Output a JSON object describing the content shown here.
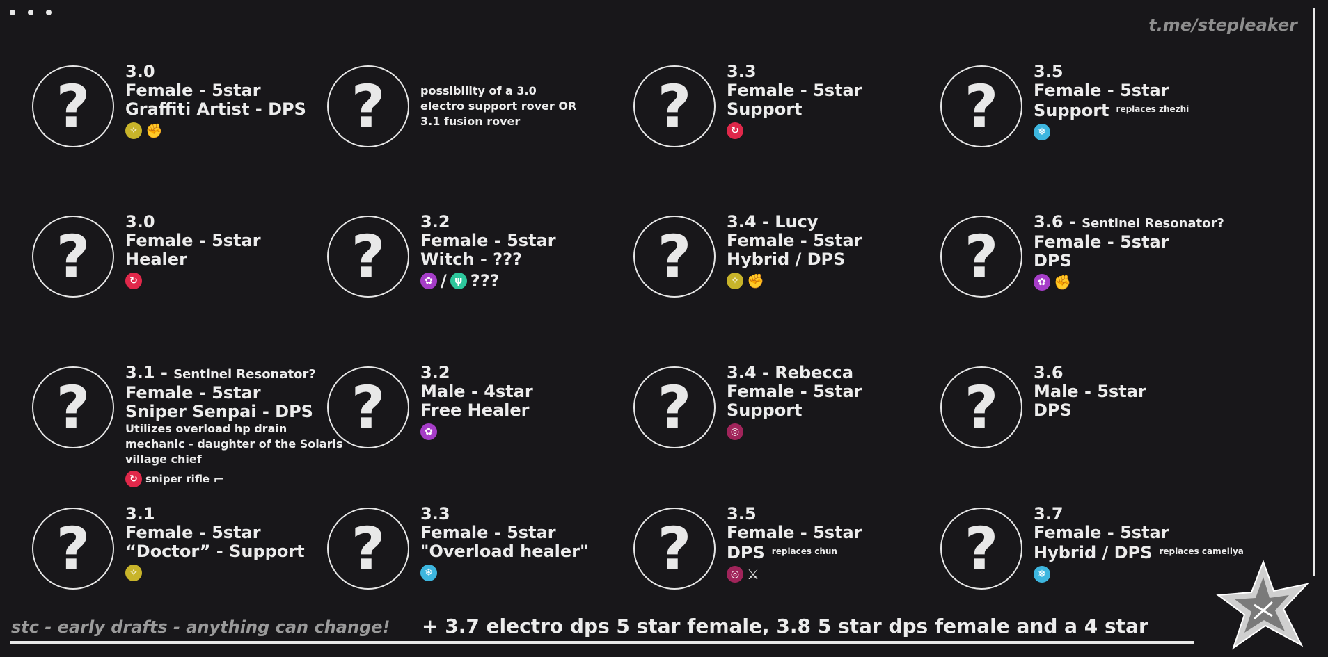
{
  "watermark": "t.me/stepleaker",
  "footer": {
    "disclaimer": "stc - early drafts - anything can change!",
    "extra": "+ 3.7 electro dps 5 star female, 3.8 5 star dps female and a 4 star"
  },
  "placeholder_glyph": "?",
  "element_colors": {
    "spectro": "#c8b42a",
    "fusion": "#e0284a",
    "glacio": "#3db6df",
    "electro": "#a63dc8",
    "aero": "#2dc79c",
    "havoc": "#a0245a"
  },
  "cards": [
    {
      "version": "3.0",
      "lines": [
        "Female - 5star",
        "Graffiti Artist - DPS"
      ],
      "icons": [
        {
          "kind": "element",
          "element": "spectro"
        },
        {
          "kind": "weapon",
          "weapon": "gauntlets"
        }
      ]
    },
    {
      "desc": "possibility of a 3.0\nelectro support rover OR\n3.1 fusion rover"
    },
    {
      "version": "3.3",
      "lines": [
        "Female - 5star",
        "Support"
      ],
      "icons": [
        {
          "kind": "element",
          "element": "fusion"
        }
      ]
    },
    {
      "version": "3.5",
      "lines": [
        "Female - 5star",
        "Support"
      ],
      "note": "replaces zhezhi",
      "icons": [
        {
          "kind": "element",
          "element": "glacio"
        }
      ]
    },
    {
      "version": "3.0",
      "lines": [
        "Female - 5star",
        "Healer"
      ],
      "icons": [
        {
          "kind": "element",
          "element": "fusion"
        }
      ]
    },
    {
      "version": "3.2",
      "lines": [
        "Female - 5star",
        "Witch - ???"
      ],
      "icons": [
        {
          "kind": "element",
          "element": "electro"
        },
        {
          "kind": "text",
          "text": "/"
        },
        {
          "kind": "element",
          "element": "aero"
        },
        {
          "kind": "text",
          "text": "???"
        }
      ]
    },
    {
      "version": "3.4 - Lucy",
      "lines": [
        "Female - 5star",
        "Hybrid / DPS"
      ],
      "icons": [
        {
          "kind": "element",
          "element": "spectro"
        },
        {
          "kind": "weapon",
          "weapon": "gauntlets"
        }
      ]
    },
    {
      "version": "3.6 - ",
      "suffix": "Sentinel Resonator?",
      "lines": [
        "Female - 5star",
        "DPS"
      ],
      "icons": [
        {
          "kind": "element",
          "element": "electro"
        },
        {
          "kind": "weapon",
          "weapon": "gauntlets"
        }
      ]
    },
    {
      "version": "3.1 - ",
      "suffix": "Sentinel Resonator?",
      "lines": [
        "Female - 5star",
        "Sniper Senpai - DPS"
      ],
      "desc": "Utilizes overload hp drain\nmechanic - daughter of the Solaris\nvillage chief",
      "icons": [
        {
          "kind": "element",
          "element": "fusion"
        },
        {
          "kind": "text",
          "text": "sniper rifle",
          "small": true
        },
        {
          "kind": "weapon",
          "weapon": "pistols"
        }
      ]
    },
    {
      "version": "3.2",
      "lines": [
        "Male - 4star",
        "Free Healer"
      ],
      "icons": [
        {
          "kind": "element",
          "element": "electro"
        }
      ]
    },
    {
      "version": "3.4 - Rebecca",
      "lines": [
        "Female - 5star",
        "Support"
      ],
      "icons": [
        {
          "kind": "element",
          "element": "havoc"
        }
      ]
    },
    {
      "version": "3.6",
      "lines": [
        "Male - 5star",
        "DPS"
      ],
      "icons": []
    },
    {
      "version": "3.1",
      "lines": [
        "Female - 5star",
        "“Doctor” - Support"
      ],
      "icons": [
        {
          "kind": "element",
          "element": "spectro"
        }
      ]
    },
    {
      "version": "3.3",
      "lines": [
        "Female - 5star",
        "\"Overload healer\""
      ],
      "icons": [
        {
          "kind": "element",
          "element": "glacio"
        }
      ]
    },
    {
      "version": "3.5",
      "lines": [
        "Female - 5star",
        "DPS"
      ],
      "note": "replaces chun",
      "icons": [
        {
          "kind": "element",
          "element": "havoc"
        },
        {
          "kind": "weapon",
          "weapon": "sword"
        }
      ]
    },
    {
      "version": "3.7",
      "lines": [
        "Female - 5star",
        "Hybrid / DPS"
      ],
      "note": "replaces camellya",
      "icons": [
        {
          "kind": "element",
          "element": "glacio"
        }
      ]
    }
  ]
}
